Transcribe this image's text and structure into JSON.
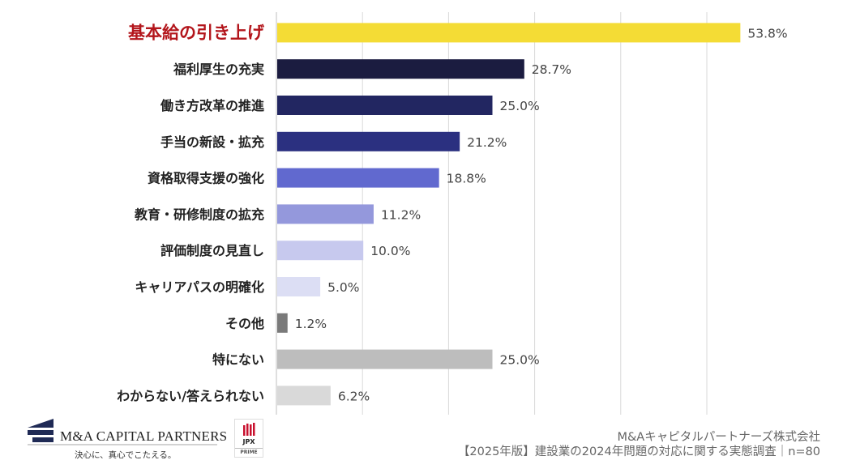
{
  "chart_data": {
    "type": "bar",
    "orientation": "horizontal",
    "categories": [
      "基本給の引き上げ",
      "福利厚生の充実",
      "働き方改革の推進",
      "手当の新設・拡充",
      "資格取得支援の強化",
      "教育・研修制度の拡充",
      "評価制度の見直し",
      "キャリアパスの明確化",
      "その他",
      "特にない",
      "わからない/答えられない"
    ],
    "values": [
      53.8,
      28.7,
      25.0,
      21.2,
      18.8,
      11.2,
      10.0,
      5.0,
      1.2,
      25.0,
      6.2
    ],
    "value_labels": [
      "53.8%",
      "28.7%",
      "25.0%",
      "21.2%",
      "18.8%",
      "11.2%",
      "10.0%",
      "5.0%",
      "1.2%",
      "25.0%",
      "6.2%"
    ],
    "colors": [
      "#f4dc35",
      "#1b1c40",
      "#222661",
      "#2b3080",
      "#6169cf",
      "#9498dc",
      "#c7c9ee",
      "#dcdef4",
      "#7a7a7a",
      "#bdbdbd",
      "#d9d9d9"
    ],
    "highlight_color": "#b3151b",
    "xlim": [
      0,
      60
    ],
    "grid": true,
    "gridline_color": "#d9d9d9"
  },
  "footer": {
    "company": "M&Aキャピタルパートナーズ株式会社",
    "source": "【2025年版】建設業の2024年問題の対応に関する実態調査｜n=80"
  },
  "logo": {
    "brand": "M&A CAPITAL PARTNERS",
    "tagline": "決心に、真心でこたえる。",
    "brand_color": "#1f2a55",
    "jpx": "JPX",
    "jpx_sub": "PRIME"
  }
}
